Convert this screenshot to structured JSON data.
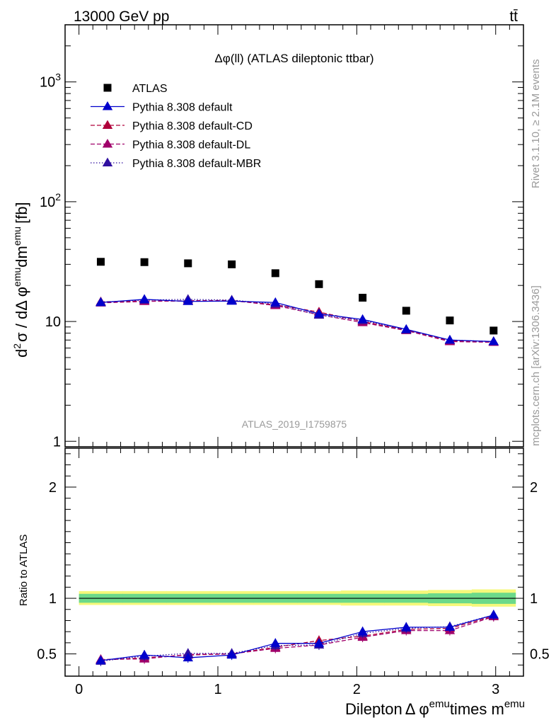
{
  "header": {
    "left": "13000 GeV pp",
    "right": "tt̄"
  },
  "side_labels": {
    "rivet": "Rivet 3.1.10, ≥ 2.1M events",
    "mcplots": "mcplots.cern.ch [arXiv:1306.3436]"
  },
  "chart_data": {
    "type": "scatter",
    "title": "Δφ(ll) (ATLAS dileptonic ttbar)",
    "watermark": "ATLAS_2019_I1759875",
    "xlabel": "Dilepton Δ φ^emu times m^emu",
    "xlabel_parts": {
      "main": "Dilepton",
      "delta": "Δ φ",
      "sup1": "emu",
      "mid": "times m",
      "sup2": "emu"
    },
    "ylabel": "d²σ / dΔ φ^emu dm^emu [fb]",
    "ylabel_parts": {
      "d": "d",
      "two": "2",
      "sigma": "σ / dΔ φ",
      "emu1": "emu",
      "dm": "dm",
      "emu2": "emu",
      "unit": "[fb]"
    },
    "ratio_ylabel": "Ratio to ATLAS",
    "xlim": [
      -0.1,
      3.2
    ],
    "ylim": [
      0.9,
      3000
    ],
    "yscale": "log",
    "ratio_ylim": [
      0.3,
      2.35
    ],
    "x_ticks": [
      0,
      1,
      2,
      3
    ],
    "x_tick_labels": [
      "0",
      "1",
      "2",
      "3"
    ],
    "y_ticks": [
      1,
      10,
      100,
      1000
    ],
    "y_tick_labels": [
      {
        "base": "1",
        "exp": ""
      },
      {
        "base": "10",
        "exp": ""
      },
      {
        "base": "10",
        "exp": "2"
      },
      {
        "base": "10",
        "exp": "3"
      }
    ],
    "ratio_ticks": [
      0.5,
      1,
      2
    ],
    "ratio_tick_labels": [
      "0.5",
      "1",
      "2"
    ],
    "legend_position": "top-left",
    "x": [
      0.157,
      0.471,
      0.785,
      1.1,
      1.414,
      1.728,
      2.042,
      2.356,
      2.67,
      2.985
    ],
    "series": [
      {
        "name": "ATLAS",
        "color": "#000000",
        "marker": "square",
        "line": "none",
        "values": [
          31.5,
          31.3,
          30.6,
          30.0,
          25.3,
          20.5,
          15.8,
          12.3,
          10.2,
          8.4
        ]
      },
      {
        "name": "Pythia 8.308 default",
        "color": "#0000cc",
        "marker": "triangle",
        "line": "solid",
        "values": [
          14.4,
          15.3,
          14.7,
          14.8,
          14.4,
          11.6,
          10.4,
          8.6,
          7.0,
          6.8
        ],
        "ratio": [
          0.44,
          0.49,
          0.465,
          0.49,
          0.595,
          0.595,
          0.7,
          0.74,
          0.74,
          0.85
        ]
      },
      {
        "name": "Pythia 8.308 default-CD",
        "color": "#b0003a",
        "marker": "triangle",
        "line": "dashed",
        "values": [
          14.6,
          14.8,
          14.8,
          14.9,
          13.8,
          12.0,
          10.0,
          8.5,
          6.9,
          6.8
        ],
        "ratio": [
          0.445,
          0.465,
          0.49,
          0.5,
          0.56,
          0.62,
          0.66,
          0.72,
          0.73,
          0.84
        ]
      },
      {
        "name": "Pythia 8.308 default-DL",
        "color": "#a0006a",
        "marker": "triangle",
        "line": "dashed",
        "values": [
          14.3,
          14.7,
          14.9,
          15.0,
          13.6,
          11.4,
          9.8,
          8.4,
          6.8,
          6.7
        ],
        "ratio": [
          0.45,
          0.455,
          0.495,
          0.5,
          0.55,
          0.58,
          0.65,
          0.71,
          0.71,
          0.835
        ]
      },
      {
        "name": "Pythia 8.308 default-MBR",
        "color": "#3010a0",
        "marker": "triangle",
        "line": "dotted",
        "values": [
          14.5,
          15.1,
          15.3,
          15.1,
          14.0,
          11.3,
          10.2,
          8.5,
          7.0,
          6.8
        ],
        "ratio": [
          0.435,
          0.48,
          0.505,
          0.505,
          0.575,
          0.58,
          0.685,
          0.73,
          0.745,
          0.85
        ]
      }
    ],
    "uncertainty_band": {
      "inner_color": "#6cd98a",
      "outer_color": "#f5f87a",
      "inner": [
        [
          0.96,
          1.04
        ],
        [
          0.96,
          1.04
        ],
        [
          0.96,
          1.04
        ],
        [
          0.96,
          1.04
        ],
        [
          0.96,
          1.04
        ],
        [
          0.96,
          1.04
        ],
        [
          0.96,
          1.04
        ],
        [
          0.96,
          1.04
        ],
        [
          0.955,
          1.045
        ],
        [
          0.95,
          1.05
        ]
      ],
      "outer": [
        [
          0.94,
          1.065
        ],
        [
          0.94,
          1.065
        ],
        [
          0.94,
          1.065
        ],
        [
          0.94,
          1.065
        ],
        [
          0.94,
          1.065
        ],
        [
          0.94,
          1.065
        ],
        [
          0.935,
          1.07
        ],
        [
          0.935,
          1.07
        ],
        [
          0.93,
          1.075
        ],
        [
          0.925,
          1.08
        ]
      ]
    }
  }
}
